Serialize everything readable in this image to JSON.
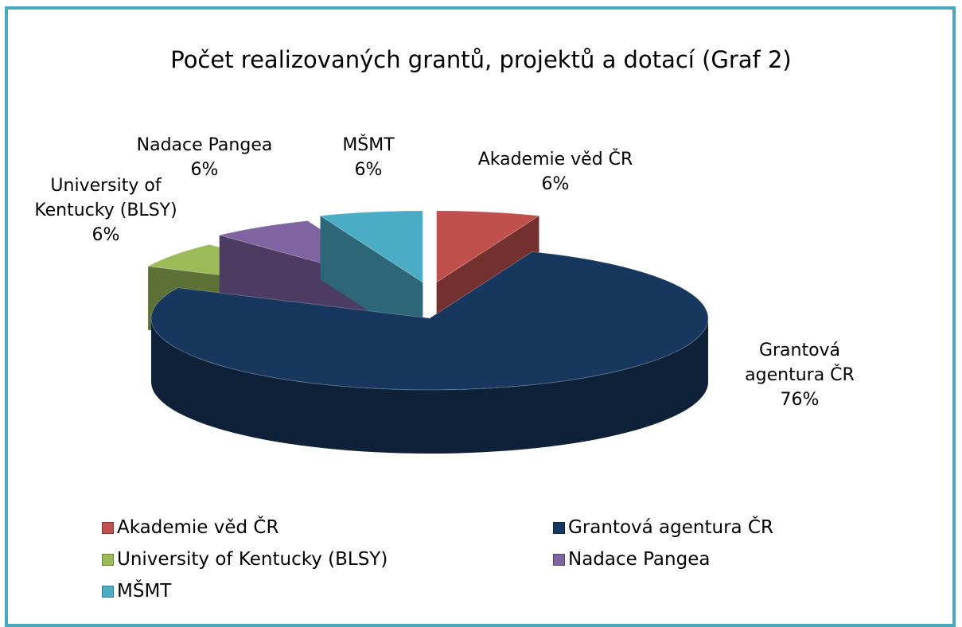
{
  "chart_data": {
    "type": "pie",
    "title": "Počet realizovaných grantů, projektů a dotací (Graf 2)",
    "categories": [
      "Akademie věd ČR",
      "Grantová agentura ČR",
      "University of Kentucky (BLSY)",
      "Nadace Pangea",
      "MŠMT"
    ],
    "values": [
      6,
      76,
      6,
      6,
      6
    ],
    "value_labels": [
      "6%",
      "76%",
      "6%",
      "6%",
      "6%"
    ],
    "colors": [
      "#c0504d",
      "#17375e",
      "#9bbb59",
      "#8064a2",
      "#4bacc6"
    ],
    "legend": "bottom"
  }
}
